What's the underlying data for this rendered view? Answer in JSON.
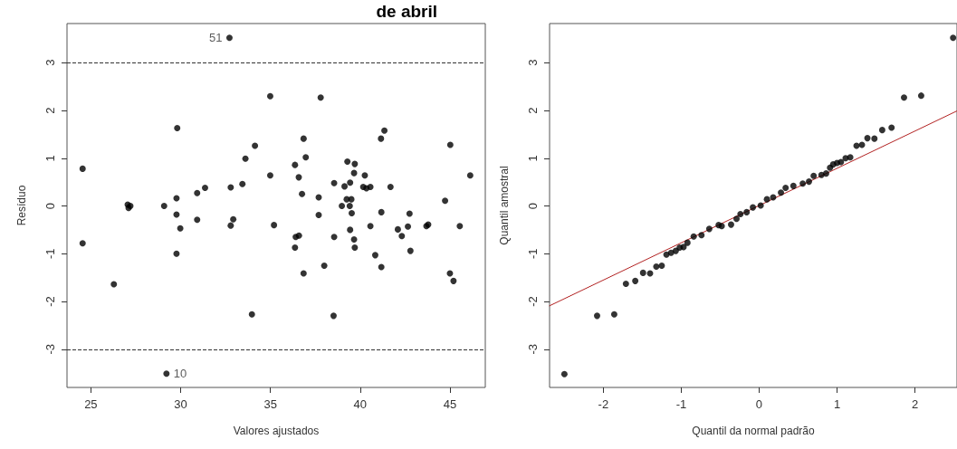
{
  "chart_data": [
    {
      "type": "scatter",
      "title": "de abril",
      "xlabel": "Valores ajustados",
      "ylabel": "Resíduo",
      "xlim": [
        23.67,
        46.97
      ],
      "ylim": [
        -3.8,
        3.82
      ],
      "xticks": [
        25,
        30,
        35,
        40,
        45
      ],
      "yticks": [
        -3,
        -2,
        -1,
        0,
        1,
        2,
        3
      ],
      "series": [
        {
          "color": "#000000",
          "marker": "circle",
          "x": [
            32.72,
            34.99,
            37.8,
            29.81,
            36.85,
            41.35,
            41.16,
            34.14,
            45.02,
            33.61,
            36.97,
            24.54,
            39.29,
            39.7,
            36.37,
            39.66,
            34.99,
            36.58,
            40.26,
            46.13,
            38.55,
            39.44,
            39.13,
            40.17,
            40.35,
            40.57,
            41.69,
            33.44,
            32.79,
            31.36,
            30.92,
            36.76,
            29.77,
            37.69,
            39.25,
            39.51,
            44.73,
            27.05,
            27.2,
            27.1,
            29.08,
            38.98,
            39.42,
            39.53,
            41.18,
            42.75,
            29.77,
            37.69,
            30.92,
            32.93,
            32.79,
            35.2,
            40.57,
            42.66,
            43.69,
            43.79,
            45.55,
            29.98,
            24.54,
            36.41,
            36.59,
            38.55,
            39.44,
            39.66,
            39.7,
            36.37,
            42.1,
            42.32,
            42.8,
            29.77,
            40.84,
            41.18,
            38.0,
            36.85,
            45.0,
            45.2,
            26.28,
            33.97,
            38.52,
            29.21
          ],
          "values": [
            3.52,
            2.3,
            2.27,
            1.63,
            1.41,
            1.58,
            1.41,
            1.26,
            1.28,
            0.99,
            1.02,
            0.78,
            0.93,
            0.88,
            0.86,
            0.69,
            0.64,
            0.6,
            0.64,
            0.64,
            0.48,
            0.49,
            0.41,
            0.4,
            0.37,
            0.4,
            0.4,
            0.46,
            0.39,
            0.38,
            0.27,
            0.25,
            0.16,
            0.18,
            0.14,
            0.14,
            0.11,
            0.03,
            0.0,
            -0.04,
            0.0,
            0.0,
            0.0,
            -0.15,
            -0.13,
            -0.16,
            -0.18,
            -0.19,
            -0.29,
            -0.28,
            -0.41,
            -0.4,
            -0.42,
            -0.43,
            -0.42,
            -0.39,
            -0.42,
            -0.47,
            -0.78,
            -0.65,
            -0.62,
            -0.65,
            -0.5,
            -0.7,
            -0.87,
            -0.87,
            -0.49,
            -0.63,
            -0.94,
            -1.0,
            -1.03,
            -1.28,
            -1.25,
            -1.41,
            -1.41,
            -1.57,
            -1.64,
            -2.27,
            -2.3,
            -3.51
          ]
        }
      ],
      "ref_lines": [
        {
          "axis": "y",
          "value": 3,
          "color": "#333333",
          "line_style": "dashed"
        },
        {
          "axis": "y",
          "value": -3,
          "color": "#333333",
          "line_style": "dashed"
        }
      ],
      "annotations": [
        {
          "text": "51",
          "x": 32.72,
          "y": 3.52
        },
        {
          "text": "10",
          "x": 29.21,
          "y": -3.51
        }
      ]
    },
    {
      "type": "scatter",
      "xlabel": "Quantil da normal padrão",
      "ylabel": "Quantil amostral",
      "xlim": [
        -2.69,
        2.54
      ],
      "ylim": [
        -3.8,
        3.82
      ],
      "xticks": [
        -2,
        -1,
        0,
        1,
        2
      ],
      "yticks": [
        -3,
        -2,
        -1,
        0,
        1,
        2,
        3
      ],
      "series": [
        {
          "color": "#000000",
          "marker": "circle",
          "x": [
            2.49,
            2.08,
            1.86,
            1.7,
            1.58,
            1.48,
            1.39,
            1.32,
            1.25,
            1.17,
            1.11,
            1.05,
            1.0,
            0.95,
            0.91,
            0.86,
            0.8,
            0.7,
            0.64,
            0.56,
            0.44,
            0.34,
            0.28,
            0.18,
            0.1,
            0.02,
            -0.08,
            -0.16,
            -0.24,
            -0.29,
            -0.36,
            -0.48,
            -0.52,
            -0.64,
            -0.74,
            -0.84,
            -0.92,
            -0.97,
            -1.02,
            -1.07,
            -1.13,
            -1.19,
            -1.25,
            -1.32,
            -1.4,
            -1.49,
            -1.59,
            -1.71,
            -1.86,
            -2.08,
            -2.5
          ],
          "values": [
            3.52,
            2.31,
            2.27,
            1.64,
            1.59,
            1.41,
            1.42,
            1.28,
            1.26,
            1.02,
            1.0,
            0.92,
            0.9,
            0.87,
            0.8,
            0.68,
            0.65,
            0.63,
            0.51,
            0.47,
            0.42,
            0.38,
            0.28,
            0.18,
            0.14,
            0.01,
            -0.03,
            -0.13,
            -0.17,
            -0.27,
            -0.39,
            -0.42,
            -0.4,
            -0.48,
            -0.61,
            -0.64,
            -0.77,
            -0.86,
            -0.87,
            -0.94,
            -0.98,
            -1.02,
            -1.25,
            -1.27,
            -1.41,
            -1.4,
            -1.57,
            -1.63,
            -2.27,
            -2.3,
            -3.52
          ]
        },
        {
          "type": "line",
          "color": "#b22222",
          "marker": "none",
          "line_style": "solid",
          "x": [
            -2.69,
            2.54
          ],
          "values": [
            -2.09,
            1.99
          ]
        }
      ]
    }
  ]
}
